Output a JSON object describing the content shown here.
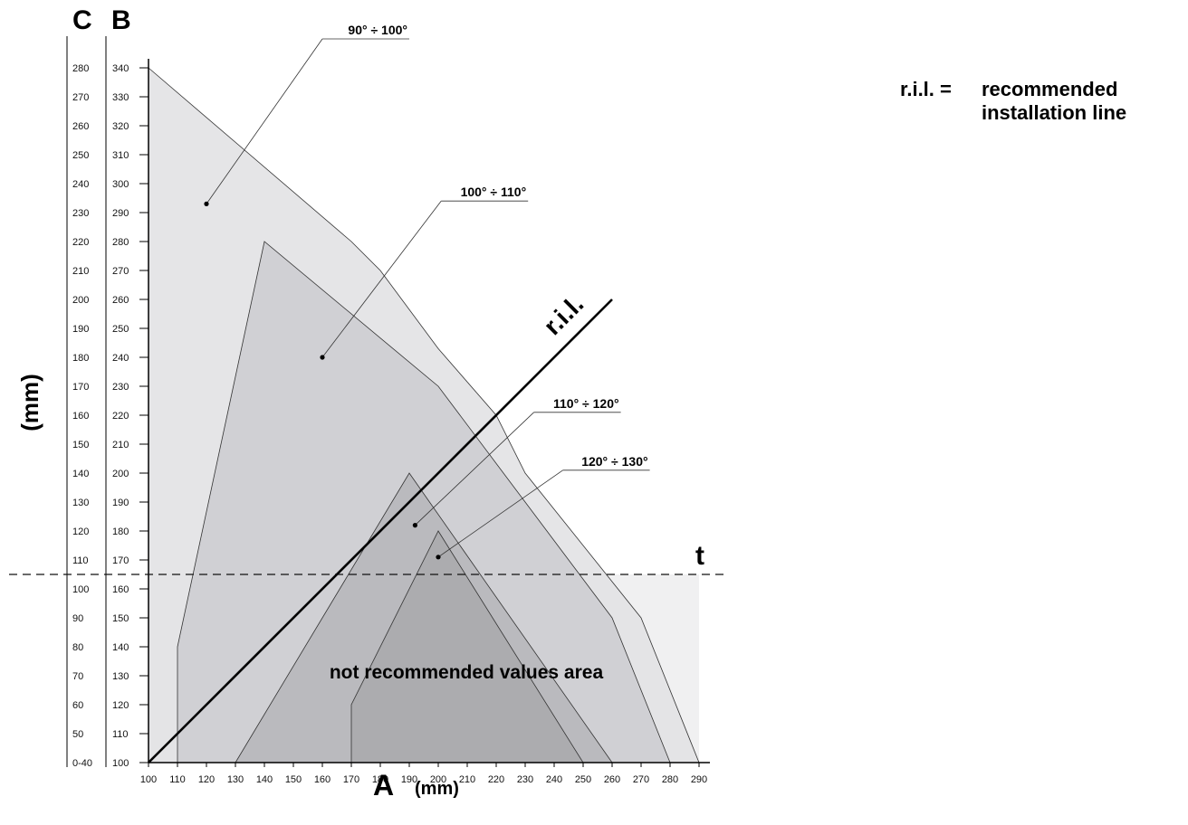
{
  "chart_data": {
    "type": "area",
    "x_axis": {
      "name": "A",
      "unit": "(mm)",
      "range": [
        100,
        290
      ],
      "ticks": [
        100,
        110,
        120,
        130,
        140,
        150,
        160,
        170,
        180,
        190,
        200,
        210,
        220,
        230,
        240,
        250,
        260,
        270,
        280,
        290
      ]
    },
    "y_axis_B": {
      "name": "B",
      "range": [
        100,
        340
      ],
      "ticks": [
        100,
        110,
        120,
        130,
        140,
        150,
        160,
        170,
        180,
        190,
        200,
        210,
        220,
        230,
        240,
        250,
        260,
        270,
        280,
        290,
        300,
        310,
        320,
        330,
        340
      ]
    },
    "y_axis_C": {
      "name": "C",
      "tick_labels": [
        "0-40",
        "50",
        "60",
        "70",
        "80",
        "90",
        "100",
        "110",
        "120",
        "130",
        "140",
        "150",
        "160",
        "170",
        "180",
        "190",
        "200",
        "210",
        "220",
        "230",
        "240",
        "250",
        "260",
        "270",
        "280"
      ]
    },
    "y_unit_label": "(mm)",
    "regions": [
      {
        "name": "90° ÷ 100°",
        "color": "#e2e2e4",
        "points": [
          [
            100,
            340
          ],
          [
            170,
            280
          ],
          [
            180,
            270
          ],
          [
            200,
            243
          ],
          [
            220,
            220
          ],
          [
            230,
            200
          ],
          [
            270,
            150
          ],
          [
            290,
            100
          ],
          [
            100,
            100
          ]
        ],
        "dot": [
          120,
          293
        ],
        "label_at": [
          160,
          350
        ]
      },
      {
        "name": "100° ÷ 110°",
        "color": "#cdcdd0",
        "points": [
          [
            110,
            140
          ],
          [
            140,
            280
          ],
          [
            200,
            230
          ],
          [
            260,
            150
          ],
          [
            280,
            100
          ],
          [
            110,
            100
          ]
        ],
        "dot": [
          160,
          240
        ],
        "label_at": [
          201,
          294
        ]
      },
      {
        "name": "110° ÷ 120°",
        "color": "#b6b6ba",
        "points": [
          [
            130,
            100
          ],
          [
            190,
            200
          ],
          [
            260,
            100
          ]
        ],
        "dot": [
          192,
          182
        ],
        "label_at": [
          233,
          221
        ]
      },
      {
        "name": "120° ÷ 130°",
        "color": "#a9a9ad",
        "points": [
          [
            170,
            100
          ],
          [
            170,
            120
          ],
          [
            200,
            180
          ],
          [
            250,
            100
          ]
        ],
        "dot": [
          200,
          171
        ],
        "label_at": [
          243,
          201
        ]
      }
    ],
    "lower_zone_color": "#f0f0f1",
    "ril_line": {
      "label": "r.i.l.",
      "from": [
        100,
        100
      ],
      "to": [
        260,
        260
      ]
    },
    "t_line": {
      "label": "t",
      "y": 165
    },
    "area_annotation": "not recommended values area",
    "legend": {
      "key": "r.i.l. =",
      "line1": "recommended",
      "line2": "installation line"
    }
  }
}
